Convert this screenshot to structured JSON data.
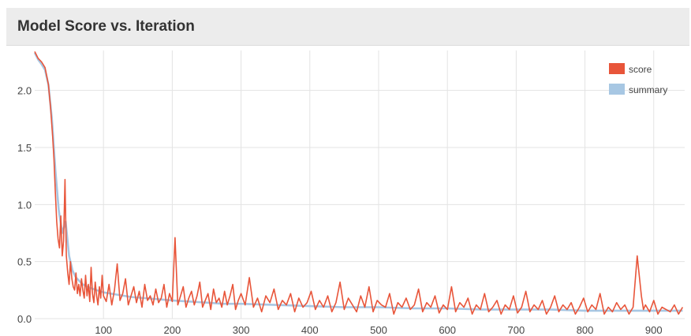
{
  "panel": {
    "title": "Model Score vs. Iteration"
  },
  "chart_data": {
    "type": "line",
    "title": "Model Score vs. Iteration",
    "xlabel": "",
    "ylabel": "",
    "xlim": [
      0,
      945
    ],
    "ylim": [
      0,
      2.35
    ],
    "xticks": [
      100,
      200,
      300,
      400,
      500,
      600,
      700,
      800,
      900
    ],
    "yticks": [
      0.0,
      0.5,
      1.0,
      1.5,
      2.0
    ],
    "ytick_labels": [
      "0.0",
      "0.5",
      "1.0",
      "1.5",
      "2.0"
    ],
    "grid": true,
    "legend_position": "top-right",
    "series": [
      {
        "name": "score",
        "color": "#e8553a",
        "x": [
          0,
          5,
          10,
          15,
          20,
          23,
          26,
          28,
          30,
          32,
          34,
          36,
          38,
          40,
          42,
          44,
          46,
          48,
          50,
          52,
          54,
          56,
          58,
          60,
          62,
          64,
          66,
          68,
          70,
          72,
          74,
          76,
          78,
          80,
          82,
          84,
          86,
          88,
          90,
          92,
          94,
          96,
          98,
          100,
          104,
          108,
          112,
          116,
          120,
          124,
          128,
          132,
          136,
          140,
          144,
          148,
          152,
          156,
          160,
          164,
          168,
          172,
          176,
          180,
          184,
          188,
          192,
          196,
          200,
          204,
          208,
          212,
          216,
          220,
          224,
          228,
          232,
          236,
          240,
          244,
          248,
          252,
          256,
          260,
          264,
          268,
          272,
          276,
          280,
          284,
          288,
          292,
          296,
          300,
          306,
          312,
          318,
          324,
          330,
          336,
          342,
          348,
          354,
          360,
          366,
          372,
          378,
          384,
          390,
          396,
          402,
          408,
          414,
          420,
          426,
          432,
          438,
          444,
          450,
          456,
          462,
          468,
          474,
          480,
          486,
          492,
          498,
          504,
          510,
          516,
          522,
          528,
          534,
          540,
          546,
          552,
          558,
          564,
          570,
          576,
          582,
          588,
          594,
          600,
          606,
          612,
          618,
          624,
          630,
          636,
          642,
          648,
          654,
          660,
          666,
          672,
          678,
          684,
          690,
          696,
          702,
          708,
          714,
          720,
          726,
          732,
          738,
          744,
          750,
          756,
          762,
          768,
          774,
          780,
          786,
          792,
          798,
          804,
          810,
          816,
          822,
          828,
          834,
          840,
          846,
          852,
          858,
          864,
          870,
          876,
          882,
          885,
          888,
          894,
          900,
          906,
          912,
          918,
          924,
          930,
          936,
          942
        ],
        "values": [
          2.34,
          2.28,
          2.25,
          2.2,
          2.05,
          1.85,
          1.6,
          1.4,
          1.1,
          0.85,
          0.7,
          0.62,
          0.9,
          0.55,
          0.68,
          1.22,
          0.55,
          0.4,
          0.3,
          0.5,
          0.35,
          0.28,
          0.25,
          0.4,
          0.22,
          0.3,
          0.2,
          0.35,
          0.25,
          0.18,
          0.38,
          0.2,
          0.3,
          0.15,
          0.45,
          0.22,
          0.14,
          0.32,
          0.2,
          0.12,
          0.28,
          0.18,
          0.38,
          0.2,
          0.15,
          0.3,
          0.12,
          0.25,
          0.48,
          0.16,
          0.22,
          0.35,
          0.12,
          0.2,
          0.28,
          0.14,
          0.24,
          0.1,
          0.3,
          0.16,
          0.2,
          0.12,
          0.26,
          0.14,
          0.18,
          0.3,
          0.1,
          0.22,
          0.15,
          0.71,
          0.12,
          0.2,
          0.28,
          0.1,
          0.18,
          0.24,
          0.12,
          0.2,
          0.32,
          0.1,
          0.16,
          0.22,
          0.08,
          0.26,
          0.14,
          0.18,
          0.1,
          0.24,
          0.12,
          0.2,
          0.3,
          0.08,
          0.16,
          0.22,
          0.12,
          0.36,
          0.1,
          0.18,
          0.06,
          0.2,
          0.14,
          0.26,
          0.08,
          0.16,
          0.12,
          0.22,
          0.06,
          0.18,
          0.1,
          0.14,
          0.24,
          0.08,
          0.16,
          0.1,
          0.2,
          0.06,
          0.14,
          0.32,
          0.08,
          0.18,
          0.12,
          0.06,
          0.2,
          0.1,
          0.28,
          0.06,
          0.16,
          0.12,
          0.1,
          0.22,
          0.04,
          0.14,
          0.1,
          0.18,
          0.08,
          0.12,
          0.26,
          0.06,
          0.14,
          0.1,
          0.2,
          0.05,
          0.12,
          0.08,
          0.28,
          0.06,
          0.14,
          0.1,
          0.18,
          0.04,
          0.12,
          0.08,
          0.22,
          0.06,
          0.1,
          0.16,
          0.04,
          0.12,
          0.08,
          0.2,
          0.05,
          0.1,
          0.24,
          0.06,
          0.12,
          0.08,
          0.16,
          0.04,
          0.1,
          0.2,
          0.06,
          0.12,
          0.08,
          0.14,
          0.04,
          0.1,
          0.18,
          0.06,
          0.12,
          0.08,
          0.22,
          0.04,
          0.1,
          0.06,
          0.14,
          0.08,
          0.12,
          0.04,
          0.1,
          0.55,
          0.2,
          0.08,
          0.12,
          0.06,
          0.16,
          0.04,
          0.1,
          0.08,
          0.06,
          0.12,
          0.04,
          0.1
        ]
      },
      {
        "name": "summary",
        "color": "#a7c7e3",
        "x": [
          0,
          5,
          10,
          15,
          20,
          25,
          30,
          35,
          40,
          45,
          50,
          55,
          60,
          70,
          80,
          90,
          100,
          120,
          140,
          160,
          180,
          200,
          225,
          250,
          275,
          300,
          350,
          400,
          450,
          500,
          550,
          600,
          650,
          700,
          750,
          800,
          850,
          900,
          942
        ],
        "values": [
          2.33,
          2.27,
          2.23,
          2.18,
          2.05,
          1.75,
          1.3,
          0.95,
          0.75,
          0.85,
          0.55,
          0.42,
          0.36,
          0.3,
          0.27,
          0.25,
          0.23,
          0.21,
          0.19,
          0.18,
          0.17,
          0.16,
          0.15,
          0.14,
          0.13,
          0.13,
          0.12,
          0.11,
          0.1,
          0.1,
          0.09,
          0.09,
          0.08,
          0.08,
          0.08,
          0.07,
          0.07,
          0.07,
          0.07
        ]
      }
    ]
  }
}
